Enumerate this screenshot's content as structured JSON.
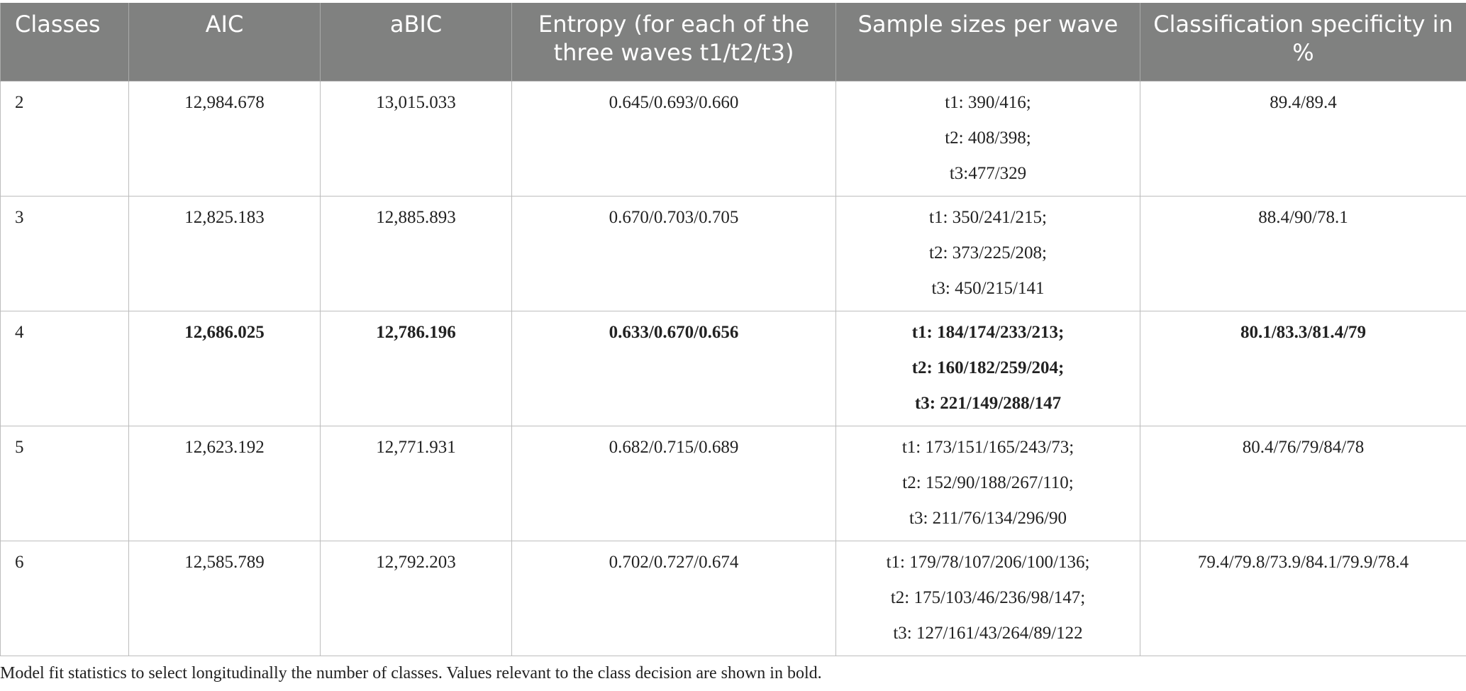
{
  "table": {
    "headers": [
      "Classes",
      "AIC",
      "aBIC",
      "Entropy (for each of the three waves t1/t2/t3)",
      "Sample sizes per wave",
      "Classification specificity in %"
    ],
    "rows": [
      {
        "classes": "2",
        "aic": "12,984.678",
        "abic": "13,015.033",
        "entropy": "0.645/0.693/0.660",
        "samples": [
          "t1: 390/416;",
          "t2: 408/398;",
          "t3:477/329"
        ],
        "specificity": "89.4/89.4"
      },
      {
        "classes": "3",
        "aic": "12,825.183",
        "abic": "12,885.893",
        "entropy": "0.670/0.703/0.705",
        "samples": [
          "t1: 350/241/215;",
          "t2: 373/225/208;",
          "t3: 450/215/141"
        ],
        "specificity": "88.4/90/78.1"
      },
      {
        "classes": "4",
        "aic": "12,686.025",
        "abic": "12,786.196",
        "entropy": "0.633/0.670/0.656",
        "samples": [
          "t1: 184/174/233/213;",
          "t2: 160/182/259/204;",
          "t3: 221/149/288/147"
        ],
        "specificity": "80.1/83.3/81.4/79"
      },
      {
        "classes": "5",
        "aic": "12,623.192",
        "abic": "12,771.931",
        "entropy": "0.682/0.715/0.689",
        "samples": [
          "t1: 173/151/165/243/73;",
          "t2: 152/90/188/267/110;",
          "t3: 211/76/134/296/90"
        ],
        "specificity": "80.4/76/79/84/78"
      },
      {
        "classes": "6",
        "aic": "12,585.789",
        "abic": "12,792.203",
        "entropy": "0.702/0.727/0.674",
        "samples": [
          "t1: 179/78/107/206/100/136;",
          "t2: 175/103/46/236/98/147;",
          "t3: 127/161/43/264/89/122"
        ],
        "specificity": "79.4/79.8/73.9/84.1/79.9/78.4"
      }
    ]
  },
  "caption": "Model fit statistics to select longitudinally the number of classes. Values relevant to the class decision are shown in bold."
}
